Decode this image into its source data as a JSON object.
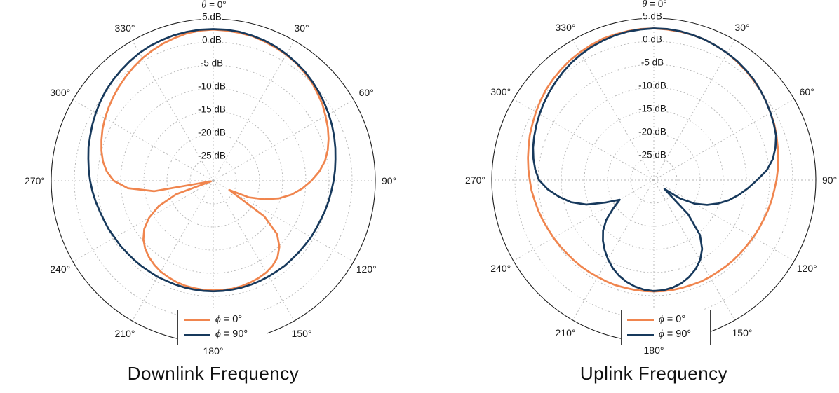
{
  "chart_data": [
    {
      "type": "polar-line",
      "title": "Downlink Frequency",
      "theta_zero_label": "θ = 0°",
      "angle_labels": [
        "30°",
        "60°",
        "90°",
        "120°",
        "150°",
        "180°",
        "210°",
        "240°",
        "270°",
        "300°",
        "330°"
      ],
      "angle_step_deg": 30,
      "rotation": "clockwise-from-top",
      "radial_axis": {
        "unit": "dB",
        "min": -30,
        "max": 5,
        "grid": "dashed"
      },
      "radial_ticks_db": [
        5,
        0,
        -5,
        -10,
        -15,
        -20,
        -25
      ],
      "radial_tick_labels": [
        "5 dB",
        "0 dB",
        "-5 dB",
        "-10 dB",
        "-15 dB",
        "-20 dB",
        "-25 dB"
      ],
      "legend_position": "bottom-center",
      "legend": [
        {
          "label": "ϕ = 0°",
          "color": "#F0854E"
        },
        {
          "label": "ϕ = 90°",
          "color": "#17395C"
        }
      ],
      "theta_deg": [
        0,
        5,
        10,
        15,
        20,
        25,
        30,
        35,
        40,
        45,
        50,
        55,
        60,
        65,
        70,
        75,
        80,
        85,
        90,
        95,
        100,
        105,
        110,
        115,
        120,
        125,
        130,
        135,
        140,
        145,
        150,
        155,
        160,
        165,
        170,
        175,
        180,
        185,
        190,
        195,
        200,
        205,
        210,
        215,
        220,
        225,
        230,
        235,
        240,
        245,
        250,
        255,
        260,
        265,
        270,
        275,
        280,
        285,
        290,
        295,
        300,
        305,
        310,
        315,
        320,
        325,
        330,
        335,
        340,
        345,
        350,
        355
      ],
      "series": [
        {
          "name": "phi-0",
          "label": "ϕ = 0°",
          "color": "#F0854E",
          "r_db": [
            2.7,
            2.6,
            2.5,
            2.4,
            2.1,
            1.8,
            1.5,
            1.1,
            0.6,
            0.1,
            -0.6,
            -1.2,
            -2.0,
            -2.7,
            -3.5,
            -4.4,
            -5.5,
            -7.0,
            -8.8,
            -10.7,
            -12.8,
            -15.3,
            -18.3,
            -21.5,
            -26.0,
            -16.5,
            -12.0,
            -9.8,
            -8.4,
            -7.6,
            -7.1,
            -6.8,
            -6.6,
            -6.4,
            -6.3,
            -6.3,
            -6.3,
            -6.3,
            -6.4,
            -6.5,
            -6.7,
            -7.0,
            -7.3,
            -7.8,
            -8.4,
            -9.2,
            -10.3,
            -11.8,
            -14.0,
            -17.0,
            -21.5,
            -29.5,
            -17.0,
            -11.5,
            -8.5,
            -6.9,
            -5.8,
            -5.0,
            -4.3,
            -3.6,
            -3.0,
            -2.4,
            -1.8,
            -1.2,
            -0.6,
            0.0,
            0.6,
            1.1,
            1.6,
            2.0,
            2.4,
            2.6
          ]
        },
        {
          "name": "phi-90",
          "label": "ϕ = 90°",
          "color": "#17395C",
          "r_db": [
            2.8,
            2.8,
            2.7,
            2.5,
            2.3,
            2.0,
            1.6,
            1.2,
            0.8,
            0.3,
            -0.2,
            -0.7,
            -1.2,
            -1.7,
            -2.2,
            -2.7,
            -3.2,
            -3.6,
            -4.0,
            -4.4,
            -4.7,
            -5.0,
            -5.3,
            -5.5,
            -5.6,
            -5.8,
            -5.9,
            -6.0,
            -6.0,
            -6.1,
            -6.1,
            -6.1,
            -6.1,
            -6.1,
            -6.1,
            -6.1,
            -6.1,
            -6.1,
            -6.1,
            -6.1,
            -6.1,
            -6.1,
            -6.0,
            -6.0,
            -5.9,
            -5.8,
            -5.7,
            -5.5,
            -5.4,
            -5.1,
            -4.9,
            -4.6,
            -4.2,
            -3.8,
            -3.4,
            -3.0,
            -2.6,
            -2.1,
            -1.7,
            -1.2,
            -0.7,
            -0.2,
            0.3,
            0.7,
            1.1,
            1.5,
            1.9,
            2.2,
            2.4,
            2.6,
            2.7,
            2.8
          ]
        }
      ]
    },
    {
      "type": "polar-line",
      "title": "Uplink Frequency",
      "theta_zero_label": "θ = 0°",
      "angle_labels": [
        "30°",
        "60°",
        "90°",
        "120°",
        "150°",
        "180°",
        "210°",
        "240°",
        "270°",
        "300°",
        "330°"
      ],
      "angle_step_deg": 30,
      "rotation": "clockwise-from-top",
      "radial_axis": {
        "unit": "dB",
        "min": -30,
        "max": 5,
        "grid": "dashed"
      },
      "radial_ticks_db": [
        5,
        0,
        -5,
        -10,
        -15,
        -20,
        -25
      ],
      "radial_tick_labels": [
        "5 dB",
        "0 dB",
        "-5 dB",
        "-10 dB",
        "-15 dB",
        "-20 dB",
        "-25 dB"
      ],
      "legend_position": "bottom-center",
      "legend": [
        {
          "label": "ϕ = 0°",
          "color": "#F0854E"
        },
        {
          "label": "ϕ = 90°",
          "color": "#17395C"
        }
      ],
      "theta_deg": [
        0,
        5,
        10,
        15,
        20,
        25,
        30,
        35,
        40,
        45,
        50,
        55,
        60,
        65,
        70,
        75,
        80,
        85,
        90,
        95,
        100,
        105,
        110,
        115,
        120,
        125,
        130,
        135,
        140,
        145,
        150,
        155,
        160,
        165,
        170,
        175,
        180,
        185,
        190,
        195,
        200,
        205,
        210,
        215,
        220,
        225,
        230,
        235,
        240,
        245,
        250,
        255,
        260,
        265,
        270,
        275,
        280,
        285,
        290,
        295,
        300,
        305,
        310,
        315,
        320,
        325,
        330,
        335,
        340,
        345,
        350,
        355
      ],
      "series": [
        {
          "name": "phi-0",
          "label": "ϕ = 0°",
          "color": "#F0854E",
          "r_db": [
            2.8,
            2.7,
            2.6,
            2.5,
            2.3,
            2.0,
            1.7,
            1.3,
            0.9,
            0.5,
            0.1,
            -0.4,
            -0.9,
            -1.3,
            -1.8,
            -2.3,
            -2.7,
            -3.1,
            -3.5,
            -3.9,
            -4.2,
            -4.5,
            -4.8,
            -5.0,
            -5.2,
            -5.4,
            -5.5,
            -5.6,
            -5.7,
            -5.8,
            -5.8,
            -5.8,
            -5.9,
            -5.9,
            -5.9,
            -5.9,
            -5.9,
            -5.9,
            -5.9,
            -5.9,
            -5.8,
            -5.8,
            -5.8,
            -5.7,
            -5.6,
            -5.5,
            -5.4,
            -5.2,
            -5.0,
            -4.8,
            -4.5,
            -4.2,
            -3.9,
            -3.5,
            -3.2,
            -2.8,
            -2.4,
            -2.0,
            -1.5,
            -1.1,
            -0.6,
            -0.1,
            0.4,
            0.8,
            1.2,
            1.6,
            1.9,
            2.2,
            2.5,
            2.6,
            2.7,
            2.8
          ]
        },
        {
          "name": "phi-90",
          "label": "ϕ = 90°",
          "color": "#17395C",
          "r_db": [
            2.8,
            2.8,
            2.7,
            2.5,
            2.3,
            2.0,
            1.7,
            1.4,
            1.0,
            0.6,
            0.1,
            -0.4,
            -0.9,
            -1.4,
            -1.9,
            -2.8,
            -3.9,
            -5.5,
            -7.7,
            -9.6,
            -11.4,
            -13.2,
            -15.2,
            -17.3,
            -19.8,
            -23.0,
            -27.0,
            -19.5,
            -14.5,
            -11.8,
            -10.0,
            -8.7,
            -7.7,
            -6.9,
            -6.4,
            -6.1,
            -6.0,
            -6.2,
            -6.6,
            -7.2,
            -8.0,
            -9.0,
            -10.2,
            -11.5,
            -12.9,
            -14.5,
            -16.6,
            -19.3,
            -21.5,
            -18.5,
            -14.5,
            -11.5,
            -9.2,
            -7.0,
            -5.2,
            -4.3,
            -3.6,
            -3.0,
            -2.5,
            -2.0,
            -1.5,
            -1.0,
            -0.5,
            0.0,
            0.5,
            1.0,
            1.4,
            1.8,
            2.1,
            2.4,
            2.6,
            2.7
          ]
        }
      ]
    }
  ],
  "style": {
    "grid_color": "#b4b4b4",
    "outer_ring_color": "#1c1c1c",
    "label_color": "#1a1a1a",
    "background": "#ffffff"
  }
}
